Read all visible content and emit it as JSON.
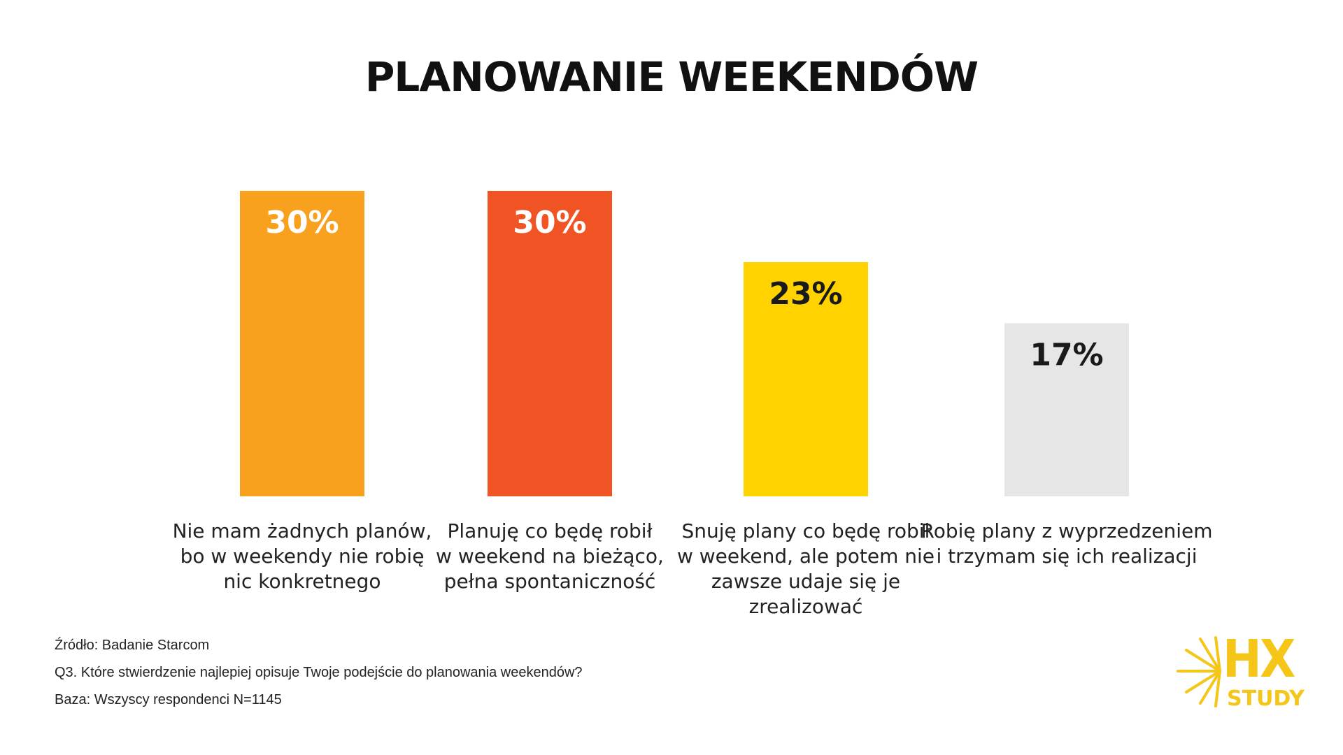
{
  "chart_data": {
    "type": "bar",
    "title": "PLANOWANIE WEEKENDÓW",
    "categories": [
      "Nie mam żadnych planów,\nbo w weekendy nie robię\nnic konkretnego",
      "Planuję co będę robił\nw weekend na bieżąco,\npełna spontaniczność",
      "Snuję plany co będę robił\nw weekend, ale potem nie\nzawsze udaje się je zrealizować",
      "Robię plany z wyprzedzeniem\ni trzymam się ich realizacji"
    ],
    "values": [
      30,
      30,
      23,
      17
    ],
    "value_labels": [
      "30%",
      "30%",
      "23%",
      "17%"
    ],
    "colors": [
      "#F7A11E",
      "#F05424",
      "#FFD200",
      "#E6E6E6"
    ],
    "label_colors": [
      "#FFFFFF",
      "#FFFFFF",
      "#1A1A1A",
      "#1A1A1A"
    ],
    "ylim": [
      0,
      30
    ],
    "grid": false,
    "legend": "none"
  },
  "footnotes": {
    "source": "Źródło: Badanie Starcom",
    "question": "Q3. Które stwierdzenie najlepiej opisuje Twoje podejście do planowania weekendów?",
    "base": "Baza: Wszyscy respondenci N=1145"
  },
  "logo": {
    "line1": "HX",
    "line2": "STUDY",
    "color": "#F5C518"
  }
}
